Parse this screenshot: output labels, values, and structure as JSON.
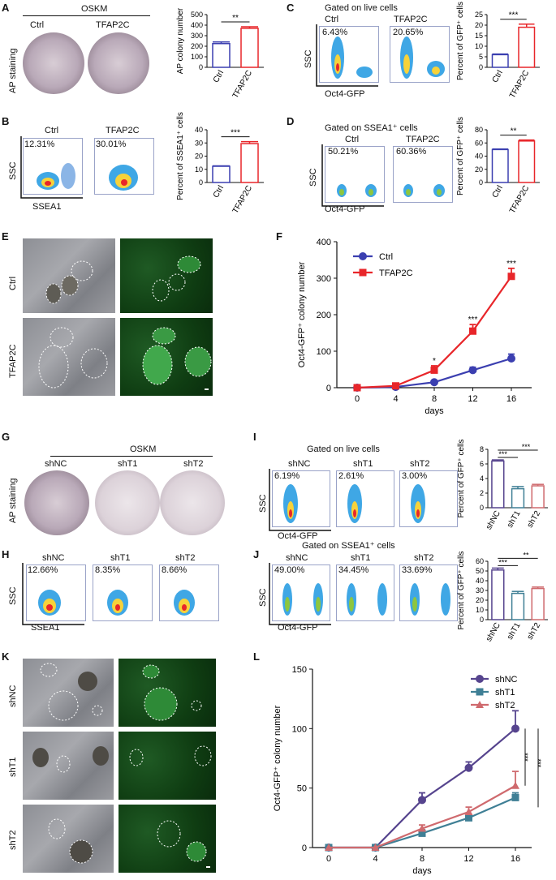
{
  "panels": {
    "A": {
      "letter": "A",
      "header": "OSKM",
      "ylabel": "AP staining",
      "dish_labels": [
        "Ctrl",
        "TFAP2C"
      ]
    },
    "B": {
      "letter": "B",
      "col_labels": [
        "Ctrl",
        "TFAP2C"
      ],
      "percents": [
        "12.31%",
        "30.01%"
      ],
      "ylabel": "SSC",
      "xlabel": "SSEA1"
    },
    "C": {
      "letter": "C",
      "title": "Gated on live cells",
      "col_labels": [
        "Ctrl",
        "TFAP2C"
      ],
      "percents": [
        "6.43%",
        "20.65%"
      ],
      "ylabel": "SSC",
      "xlabel": "Oct4-GFP"
    },
    "D": {
      "letter": "D",
      "title": "Gated on SSEA1⁺ cells",
      "col_labels": [
        "Ctrl",
        "TFAP2C"
      ],
      "percents": [
        "50.21%",
        "60.36%"
      ],
      "ylabel": "SSC",
      "xlabel": "Oct4-GFP"
    },
    "E": {
      "letter": "E",
      "row_labels": [
        "Ctrl",
        "TFAP2C"
      ]
    },
    "F": {
      "letter": "F"
    },
    "G": {
      "letter": "G",
      "header": "OSKM",
      "ylabel": "AP staining",
      "dish_labels": [
        "shNC",
        "shT1",
        "shT2"
      ]
    },
    "H": {
      "letter": "H",
      "col_labels": [
        "shNC",
        "shT1",
        "shT2"
      ],
      "percents": [
        "12.66%",
        "8.35%",
        "8.66%"
      ],
      "ylabel": "SSC",
      "xlabel": "SSEA1"
    },
    "I": {
      "letter": "I",
      "title": "Gated on live cells",
      "col_labels": [
        "shNC",
        "shT1",
        "shT2"
      ],
      "percents": [
        "6.19%",
        "2.61%",
        "3.00%"
      ],
      "ylabel": "SSC",
      "xlabel": "Oct4-GFP"
    },
    "J": {
      "letter": "J",
      "title": "Gated on SSEA1⁺ cells",
      "col_labels": [
        "shNC",
        "shT1",
        "shT2"
      ],
      "percents": [
        "49.00%",
        "34.45%",
        "33.69%"
      ],
      "ylabel": "SSC",
      "xlabel": "Oct4-GFP"
    },
    "K": {
      "letter": "K",
      "row_labels": [
        "shNC",
        "shT1",
        "shT2"
      ]
    },
    "L": {
      "letter": "L"
    }
  },
  "colors": {
    "ctrl": "#3b3fb0",
    "tfap2c": "#e8262a",
    "shnc": "#56448e",
    "sht1": "#3f7f95",
    "sht2": "#cf6a6e"
  },
  "chart_data": [
    {
      "id": "A-bar",
      "type": "bar",
      "categories": [
        "Ctrl",
        "TFAP2C"
      ],
      "values": [
        225,
        370
      ],
      "errors": [
        15,
        15
      ],
      "ylabel": "AP colony number",
      "ylim": [
        0,
        500
      ],
      "yticks": [
        0,
        100,
        200,
        300,
        400,
        500
      ],
      "significance": "**",
      "bar_colors": [
        "#3b3fb0",
        "#e8262a"
      ]
    },
    {
      "id": "B-bar",
      "type": "bar",
      "categories": [
        "Ctrl",
        "TFAP2C"
      ],
      "values": [
        12.3,
        29.5
      ],
      "errors": [
        0.3,
        1.5
      ],
      "ylabel": "Percent of SSEA1⁺ cells",
      "ylim": [
        0,
        40
      ],
      "yticks": [
        0,
        10,
        20,
        30,
        40
      ],
      "significance": "***",
      "bar_colors": [
        "#3b3fb0",
        "#e8262a"
      ]
    },
    {
      "id": "C-bar",
      "type": "bar",
      "categories": [
        "Ctrl",
        "TFAP2C"
      ],
      "values": [
        6,
        19
      ],
      "errors": [
        0.3,
        1.5
      ],
      "ylabel": "Percent of GFP⁺ cells",
      "ylim": [
        0,
        25
      ],
      "yticks": [
        0,
        5,
        10,
        15,
        20,
        25
      ],
      "significance": "***",
      "bar_colors": [
        "#3b3fb0",
        "#e8262a"
      ]
    },
    {
      "id": "D-bar",
      "type": "bar",
      "categories": [
        "Ctrl",
        "TFAP2C"
      ],
      "values": [
        50,
        63
      ],
      "errors": [
        0.8,
        1.5
      ],
      "ylabel": "Percent of GFP⁺ cells",
      "ylim": [
        0,
        80
      ],
      "yticks": [
        0,
        20,
        40,
        60,
        80
      ],
      "significance": "**",
      "bar_colors": [
        "#3b3fb0",
        "#e8262a"
      ]
    },
    {
      "id": "F-line",
      "type": "line",
      "x": [
        0,
        4,
        8,
        12,
        16
      ],
      "xticks": [
        0,
        4,
        8,
        12,
        16
      ],
      "xlabel": "days",
      "ylabel": "Oct4-GFP⁺ colony number",
      "ylim": [
        0,
        400
      ],
      "yticks": [
        0,
        100,
        200,
        300,
        400
      ],
      "series": [
        {
          "name": "Ctrl",
          "values": [
            0,
            2,
            15,
            48,
            80
          ],
          "errors": [
            0,
            1,
            3,
            8,
            12
          ],
          "color": "#3b3fb0",
          "marker": "circle"
        },
        {
          "name": "TFAP2C",
          "values": [
            0,
            5,
            48,
            155,
            305
          ],
          "errors": [
            0,
            2,
            12,
            18,
            22
          ],
          "color": "#e8262a",
          "marker": "square"
        }
      ],
      "annotations": [
        {
          "x": 8,
          "text": "*"
        },
        {
          "x": 12,
          "text": "***"
        },
        {
          "x": 16,
          "text": "***"
        }
      ],
      "legend": "top-left"
    },
    {
      "id": "I-bar",
      "type": "bar",
      "categories": [
        "shNC",
        "shT1",
        "shT2"
      ],
      "values": [
        6.4,
        2.6,
        3.0
      ],
      "errors": [
        0.15,
        0.3,
        0.2
      ],
      "ylabel": "Percent of GFP⁺ cells",
      "ylim": [
        0,
        8
      ],
      "yticks": [
        0,
        2,
        4,
        6,
        8
      ],
      "significance_pairs": [
        {
          "pair": [
            0,
            1
          ],
          "text": "***"
        },
        {
          "pair": [
            0,
            2
          ],
          "text": "***"
        }
      ],
      "bar_colors": [
        "#56448e",
        "#3f7f95",
        "#cf6a6e"
      ]
    },
    {
      "id": "J-bar",
      "type": "bar",
      "categories": [
        "shNC",
        "shT1",
        "shT2"
      ],
      "values": [
        51,
        27,
        32
      ],
      "errors": [
        2,
        2,
        1.5
      ],
      "ylabel": "Percent of GFP⁺ cells",
      "ylim": [
        0,
        60
      ],
      "yticks": [
        0,
        10,
        20,
        30,
        40,
        50,
        60
      ],
      "significance_pairs": [
        {
          "pair": [
            0,
            1
          ],
          "text": "***"
        },
        {
          "pair": [
            0,
            2
          ],
          "text": "**"
        }
      ],
      "bar_colors": [
        "#56448e",
        "#3f7f95",
        "#cf6a6e"
      ]
    },
    {
      "id": "L-line",
      "type": "line",
      "x": [
        0,
        4,
        8,
        12,
        16
      ],
      "xticks": [
        0,
        4,
        8,
        12,
        16
      ],
      "xlabel": "days",
      "ylabel": "Oct4-GFP⁺ colony number",
      "ylim": [
        0,
        150
      ],
      "yticks": [
        0,
        50,
        100,
        150
      ],
      "series": [
        {
          "name": "shNC",
          "values": [
            0,
            0,
            40,
            67,
            100
          ],
          "errors": [
            0,
            0,
            6,
            5,
            15
          ],
          "color": "#56448e",
          "marker": "circle"
        },
        {
          "name": "shT1",
          "values": [
            0,
            0,
            12,
            25,
            42
          ],
          "errors": [
            0,
            0,
            3,
            3,
            4
          ],
          "color": "#3f7f95",
          "marker": "square"
        },
        {
          "name": "shT2",
          "values": [
            0,
            0,
            16,
            30,
            52
          ],
          "errors": [
            0,
            0,
            3,
            4,
            12
          ],
          "color": "#cf6a6e",
          "marker": "triangle"
        }
      ],
      "annotations": [
        {
          "text": "***"
        },
        {
          "text": "***"
        }
      ],
      "legend": "top-right"
    }
  ]
}
